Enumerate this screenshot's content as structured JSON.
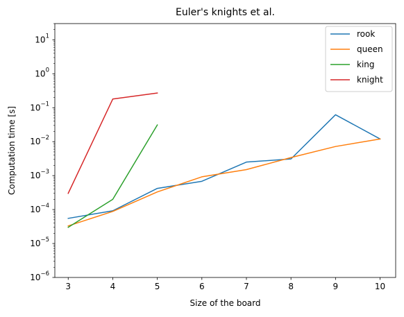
{
  "chart_data": {
    "type": "line",
    "title": "Euler's knights et al.",
    "xlabel": "Size of the board",
    "ylabel": "Computation time [s]",
    "yscale": "log",
    "xlim": [
      2.7,
      10.35
    ],
    "ylim": [
      1e-06,
      30
    ],
    "x_ticks": [
      3,
      4,
      5,
      6,
      7,
      8,
      9,
      10
    ],
    "y_ticks": [
      {
        "base": "10",
        "exp": "−6",
        "value": 1e-06
      },
      {
        "base": "10",
        "exp": "−5",
        "value": 1e-05
      },
      {
        "base": "10",
        "exp": "−4",
        "value": 0.0001
      },
      {
        "base": "10",
        "exp": "−3",
        "value": 0.001
      },
      {
        "base": "10",
        "exp": "−2",
        "value": 0.01
      },
      {
        "base": "10",
        "exp": "−1",
        "value": 0.1
      },
      {
        "base": "10",
        "exp": "0",
        "value": 1
      },
      {
        "base": "10",
        "exp": "1",
        "value": 10
      }
    ],
    "grid": false,
    "legend_position": "top-right",
    "series": [
      {
        "name": "rook",
        "color": "#1f77b4",
        "x": [
          3,
          4,
          5,
          6,
          7,
          8,
          9,
          10
        ],
        "y": [
          5.5e-05,
          9.2e-05,
          0.00042,
          0.00068,
          0.0025,
          0.0031,
          0.062,
          0.012
        ]
      },
      {
        "name": "queen",
        "color": "#ff7f0e",
        "x": [
          3,
          4,
          5,
          6,
          7,
          8,
          9,
          10
        ],
        "y": [
          3.3e-05,
          8.8e-05,
          0.00033,
          0.00092,
          0.0015,
          0.0034,
          0.0072,
          0.012
        ]
      },
      {
        "name": "king",
        "color": "#2ca02c",
        "x": [
          3,
          4,
          5
        ],
        "y": [
          3e-05,
          0.0002,
          0.031
        ]
      },
      {
        "name": "knight",
        "color": "#d62728",
        "x": [
          3,
          4,
          5
        ],
        "y": [
          0.0003,
          0.18,
          0.27
        ]
      }
    ]
  }
}
